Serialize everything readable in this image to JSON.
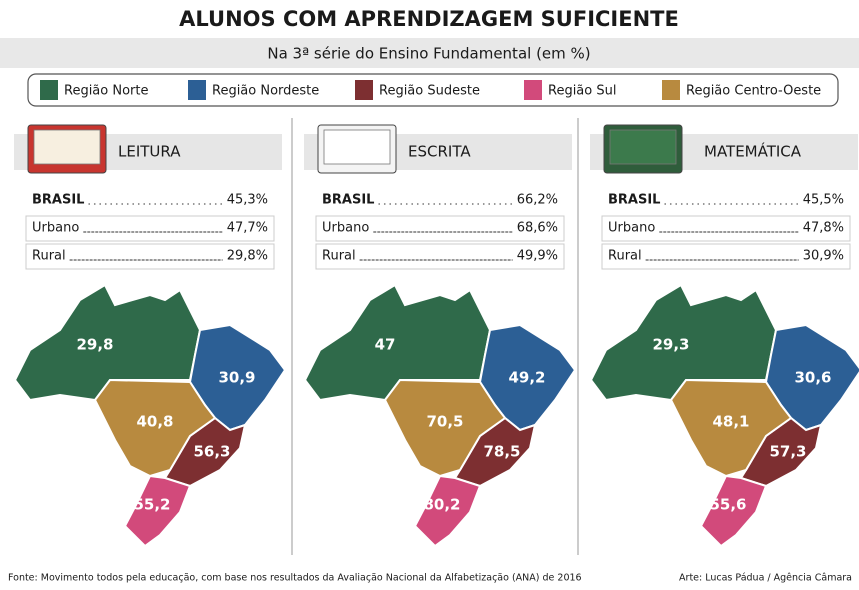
{
  "header": {
    "title": "ALUNOS COM APRENDIZAGEM SUFICIENTE",
    "subtitle": "Na 3ª série do Ensino Fundamental (em %)"
  },
  "legend": [
    {
      "name": "Região Norte",
      "color": "#2f6a4a"
    },
    {
      "name": "Região Nordeste",
      "color": "#2c5f95"
    },
    {
      "name": "Região Sudeste",
      "color": "#7d2f31"
    },
    {
      "name": "Região Sul",
      "color": "#d24a7b"
    },
    {
      "name": "Região Centro-Oeste",
      "color": "#b88a3f"
    }
  ],
  "panels": [
    {
      "title": "LEITURA",
      "stats": [
        {
          "label": "BRASIL",
          "value": "45,3%"
        },
        {
          "label": "Urbano",
          "value": "47,7%"
        },
        {
          "label": "Rural",
          "value": "29,8%"
        }
      ],
      "regions": [
        "29,8",
        "30,9",
        "56,3",
        "55,2",
        "40,8"
      ]
    },
    {
      "title": "ESCRITA",
      "stats": [
        {
          "label": "BRASIL",
          "value": "66,2%"
        },
        {
          "label": "Urbano",
          "value": "68,6%"
        },
        {
          "label": "Rural",
          "value": "49,9%"
        }
      ],
      "regions": [
        "47",
        "49,2",
        "78,5",
        "80,2",
        "70,5"
      ]
    },
    {
      "title": "MATEMÁTICA",
      "stats": [
        {
          "label": "BRASIL",
          "value": "45,5%"
        },
        {
          "label": "Urbano",
          "value": "47,8%"
        },
        {
          "label": "Rural",
          "value": "30,9%"
        }
      ],
      "regions": [
        "29,3",
        "30,6",
        "57,3",
        "55,6",
        "48,1"
      ]
    }
  ],
  "footer": {
    "source": "Fonte: Movimento todos pela educação, com base nos resultados da Avaliação Nacional da Alfabetização (ANA) de 2016",
    "credit": "Arte: Lucas Pádua / Agência Câmara"
  }
}
